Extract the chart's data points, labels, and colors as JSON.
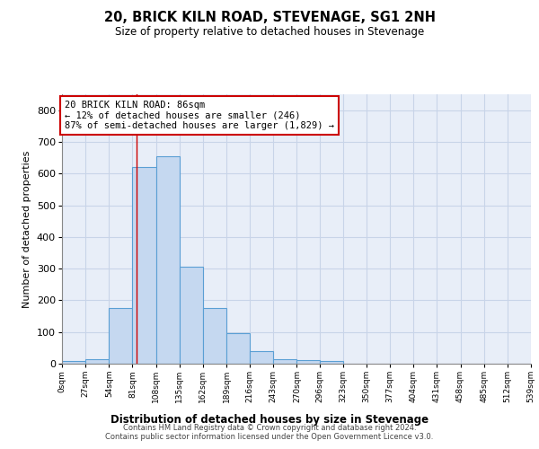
{
  "title": "20, BRICK KILN ROAD, STEVENAGE, SG1 2NH",
  "subtitle": "Size of property relative to detached houses in Stevenage",
  "xlabel": "Distribution of detached houses by size in Stevenage",
  "ylabel": "Number of detached properties",
  "bar_counts": [
    8,
    13,
    175,
    620,
    655,
    305,
    175,
    97,
    40,
    15,
    10,
    8,
    0,
    0,
    0,
    0,
    0,
    0,
    0,
    0
  ],
  "bin_edges": [
    0,
    27,
    54,
    81,
    108,
    135,
    162,
    189,
    216,
    243,
    270,
    296,
    323,
    350,
    377,
    404,
    431,
    458,
    485,
    512,
    539
  ],
  "tick_labels": [
    "0sqm",
    "27sqm",
    "54sqm",
    "81sqm",
    "108sqm",
    "135sqm",
    "162sqm",
    "189sqm",
    "216sqm",
    "243sqm",
    "270sqm",
    "296sqm",
    "323sqm",
    "350sqm",
    "377sqm",
    "404sqm",
    "431sqm",
    "458sqm",
    "485sqm",
    "512sqm",
    "539sqm"
  ],
  "bar_color": "#c5d8f0",
  "bar_edge_color": "#5a9fd4",
  "property_line_x": 86,
  "annotation_line1": "20 BRICK KILN ROAD: 86sqm",
  "annotation_line2": "← 12% of detached houses are smaller (246)",
  "annotation_line3": "87% of semi-detached houses are larger (1,829) →",
  "annotation_box_edgecolor": "#cc0000",
  "vline_color": "#cc0000",
  "background_color": "#e8eef8",
  "grid_color": "#c8d4e8",
  "ylim": [
    0,
    850
  ],
  "yticks": [
    0,
    100,
    200,
    300,
    400,
    500,
    600,
    700,
    800
  ],
  "footer_line1": "Contains HM Land Registry data © Crown copyright and database right 2024.",
  "footer_line2": "Contains public sector information licensed under the Open Government Licence v3.0."
}
